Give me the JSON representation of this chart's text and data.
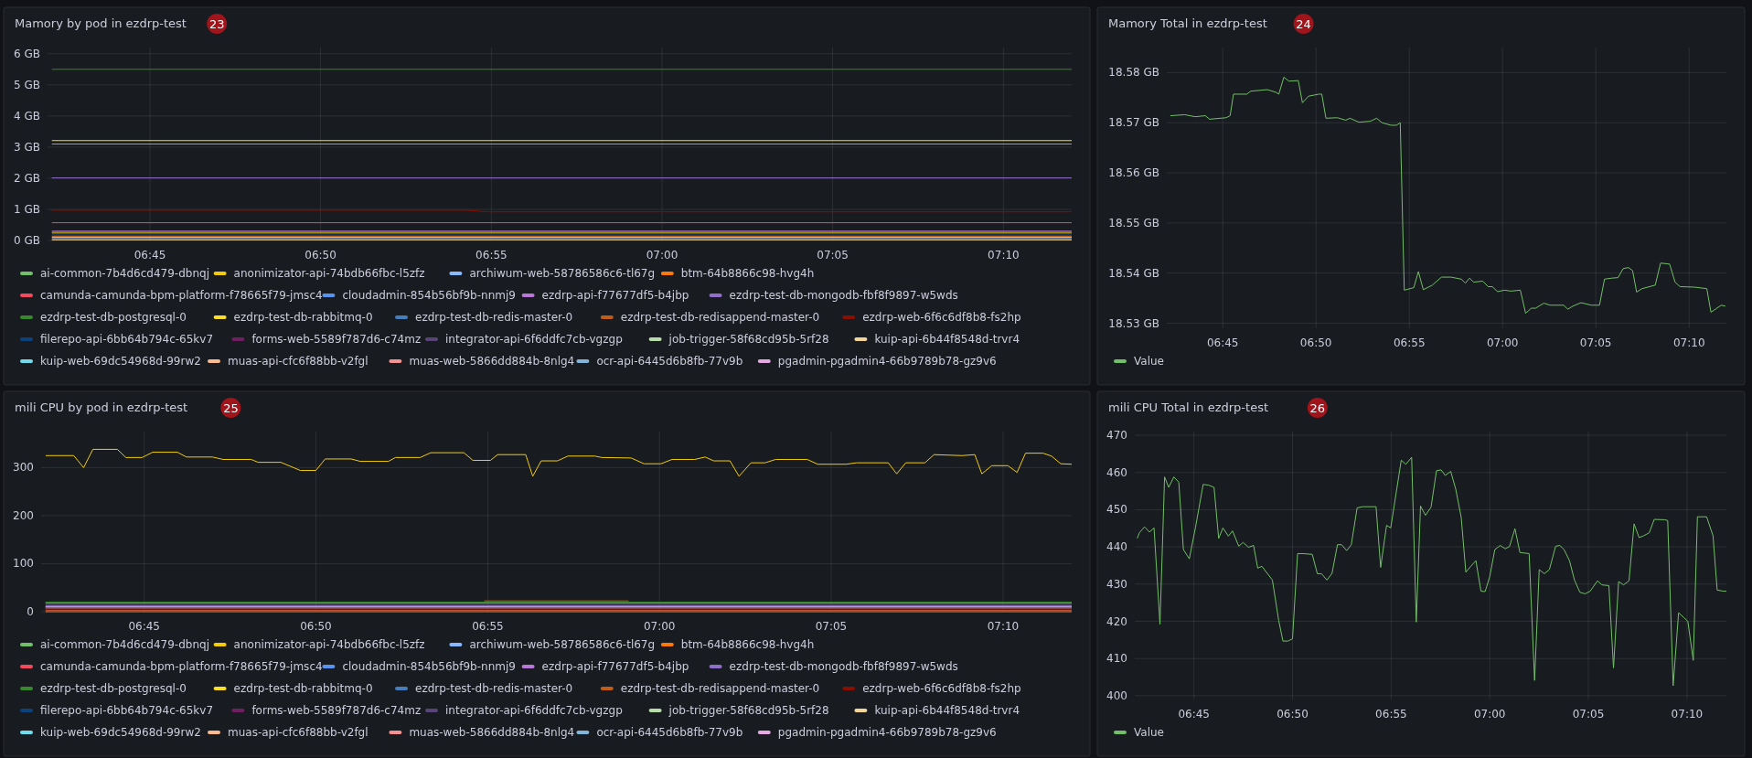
{
  "chart_data": [
    {
      "type": "line",
      "title": "Mamory by pod in ezdrp-test",
      "annotations": [
        "23"
      ],
      "grid": true,
      "legend": "bottom",
      "xlim": [
        6.7,
        7.2
      ],
      "xticks": [
        {
          "value": 6.75,
          "label": "06:45"
        },
        {
          "value": 6.8333,
          "label": "06:50"
        },
        {
          "value": 6.9167,
          "label": "06:55"
        },
        {
          "value": 7,
          "label": "07:00"
        },
        {
          "value": 7.0833,
          "label": "07:05"
        },
        {
          "value": 7.1667,
          "label": "07:10"
        }
      ],
      "ylim": [
        0,
        6.2
      ],
      "yticks": [
        {
          "value": 0,
          "label": "0 GB"
        },
        {
          "value": 1,
          "label": "1 GB"
        },
        {
          "value": 2,
          "label": "2 GB"
        },
        {
          "value": 3,
          "label": "3 GB"
        },
        {
          "value": 4,
          "label": "4 GB"
        },
        {
          "value": 5,
          "label": "5 GB"
        },
        {
          "value": 6,
          "label": "6 GB"
        }
      ],
      "series": [
        {
          "name": "ai-common-7b4d6cd479-dbnqj",
          "color": "#73bf69",
          "x": [
            6.7021,
            7.2
          ],
          "values": [
            3.1,
            3.1
          ]
        },
        {
          "name": "anonimizator-api-74bdb66fbc-l5zfz",
          "color": "#f2cc0c",
          "x": [
            6.7021,
            7.2
          ],
          "values": [
            0.26,
            0.26
          ]
        },
        {
          "name": "archiwum-web-58786586c6-tl67g",
          "color": "#8ab8ff",
          "x": [
            6.7021,
            7.2
          ],
          "values": [
            0.06,
            0.06
          ]
        },
        {
          "name": "btm-64b8866c98-hvg4h",
          "color": "#ff780a",
          "x": [
            6.7021,
            7.2
          ],
          "values": [
            0.14,
            0.14
          ]
        },
        {
          "name": "camunda-camunda-bpm-platform-f78665f79-jmsc4",
          "color": "#f2495c",
          "x": [
            6.7021,
            7.2
          ],
          "values": [
            0.57,
            0.57
          ]
        },
        {
          "name": "cloudadmin-854b56bf9b-nnmj9",
          "color": "#5794f2"
        },
        {
          "name": "ezdrp-api-f77677df5-b4jbp",
          "color": "#b877d9",
          "x": [
            6.7021,
            7.2
          ],
          "values": [
            0.3,
            0.3
          ]
        },
        {
          "name": "ezdrp-test-db-mongodb-fbf8f9897-w5wds",
          "color": "#8f6fc7",
          "x": [
            6.7021,
            7.2
          ],
          "values": [
            2.01,
            2.01
          ]
        },
        {
          "name": "ezdrp-test-db-postgresql-0",
          "color": "#37872d",
          "x": [
            6.7021,
            7.2
          ],
          "values": [
            5.5,
            5.5
          ]
        },
        {
          "name": "ezdrp-test-db-rabbitmq-0",
          "color": "#fade2a",
          "x": [
            6.7021,
            7.2
          ],
          "values": [
            3.21,
            3.21
          ]
        },
        {
          "name": "ezdrp-test-db-redis-master-0",
          "color": "#447ebc"
        },
        {
          "name": "ezdrp-test-db-redisappend-master-0",
          "color": "#c15c17"
        },
        {
          "name": "ezdrp-web-6f6c6df8b8-fs2hp",
          "color": "#890f02",
          "x": [
            6.7021,
            6.905,
            6.915,
            7.2
          ],
          "values": [
            0.97,
            0.97,
            0.92,
            0.92
          ]
        },
        {
          "name": "filerepo-api-6bb64b794c-65kv7",
          "color": "#0a437c",
          "x": [
            6.7021,
            7.2
          ],
          "values": [
            0.18,
            0.18
          ]
        },
        {
          "name": "forms-web-5589f787d6-c74mz",
          "color": "#6d1f62"
        },
        {
          "name": "integrator-api-6f6ddfc7cb-vgzgp",
          "color": "#584477",
          "x": [
            6.7021,
            7.2
          ],
          "values": [
            0.22,
            0.22
          ]
        },
        {
          "name": "job-trigger-58f68cd95b-5rf28",
          "color": "#b7dbab"
        },
        {
          "name": "kuip-api-6b44f8548d-trvr4",
          "color": "#f4d598",
          "x": [
            6.7021,
            7.2
          ],
          "values": [
            0.02,
            0.02
          ]
        },
        {
          "name": "kuip-web-69dc54968d-99rw2",
          "color": "#70dbed"
        },
        {
          "name": "muas-api-cfc6f88bb-v2fgl",
          "color": "#f9ba8f",
          "x": [
            6.7021,
            7.2
          ],
          "values": [
            0.1,
            0.1
          ]
        },
        {
          "name": "muas-web-5866dd884b-8nlg4",
          "color": "#f29191"
        },
        {
          "name": "ocr-api-6445d6b8fb-77v9b",
          "color": "#82b5d8"
        },
        {
          "name": "pgadmin-pgadmin4-66b9789b78-gz9v6",
          "color": "#e5a8e2"
        }
      ]
    },
    {
      "type": "line",
      "title": "Mamory Total in ezdrp-test",
      "annotations": [
        "24"
      ],
      "grid": true,
      "legend": "bottom",
      "xlim": [
        6.7,
        7.2
      ],
      "xticks": [
        {
          "value": 6.75,
          "label": "06:45"
        },
        {
          "value": 6.8333,
          "label": "06:50"
        },
        {
          "value": 6.9167,
          "label": "06:55"
        },
        {
          "value": 7,
          "label": "07:00"
        },
        {
          "value": 7.0833,
          "label": "07:05"
        },
        {
          "value": 7.1667,
          "label": "07:10"
        }
      ],
      "ylim": [
        18.529,
        18.585
      ],
      "yticks": [
        {
          "value": 18.53,
          "label": "18.53 GB"
        },
        {
          "value": 18.54,
          "label": "18.54 GB"
        },
        {
          "value": 18.55,
          "label": "18.55 GB"
        },
        {
          "value": 18.56,
          "label": "18.56 GB"
        },
        {
          "value": 18.57,
          "label": "18.57 GB"
        },
        {
          "value": 18.58,
          "label": "18.58 GB"
        }
      ],
      "series": [
        {
          "name": "Value",
          "color": "#73bf69",
          "x": [
            6.7032,
            6.7161,
            6.7253,
            6.7345,
            6.7382,
            6.7529,
            6.7566,
            6.7596,
            6.7714,
            6.7751,
            6.7898,
            6.7972,
            6.8001,
            6.8046,
            6.809,
            6.8175,
            6.8212,
            6.8267,
            6.8359,
            6.8385,
            6.8422,
            6.8525,
            6.8599,
            6.8636,
            6.8717,
            6.882,
            6.8875,
            6.8923,
            6.9004,
            6.9052,
            6.9086,
            6.9122,
            6.9207,
            6.9248,
            6.9292,
            6.9373,
            6.9454,
            6.9539,
            6.9631,
            6.9668,
            6.9705,
            6.9742,
            6.9823,
            6.9871,
            6.9908,
            6.9956,
            7.0018,
            7.0074,
            7.0159,
            7.0206,
            7.0258,
            7.0295,
            7.0369,
            7.0424,
            7.0546,
            7.0583,
            7.0627,
            7.0701,
            7.0793,
            7.0866,
            7.0911,
            7.0977,
            7.1032,
            7.1077,
            7.1125,
            7.1162,
            7.1198,
            7.1246,
            7.1364,
            7.1412,
            7.1493,
            7.1541,
            7.1586,
            7.1715,
            7.1825,
            7.1862,
            7.1954,
            7.1991
          ],
          "values": [
            18.5714,
            18.5716,
            18.5712,
            18.5714,
            18.5707,
            18.571,
            18.5714,
            18.5757,
            18.5757,
            18.5763,
            18.5766,
            18.5761,
            18.5757,
            18.5791,
            18.5783,
            18.5784,
            18.574,
            18.5753,
            18.5757,
            18.5757,
            18.5709,
            18.571,
            18.5705,
            18.5709,
            18.5701,
            18.5703,
            18.5709,
            18.57,
            18.5695,
            18.5695,
            18.57,
            18.5366,
            18.5371,
            18.5403,
            18.5367,
            18.5376,
            18.5392,
            18.5392,
            18.5388,
            18.538,
            18.539,
            18.5382,
            18.5384,
            18.5373,
            18.5373,
            18.5363,
            18.5366,
            18.5364,
            18.5366,
            18.532,
            18.533,
            18.533,
            18.534,
            18.5336,
            18.5336,
            18.5328,
            18.5334,
            18.5341,
            18.5336,
            18.5336,
            18.5388,
            18.539,
            18.5391,
            18.5409,
            18.5411,
            18.5405,
            18.5362,
            18.5369,
            18.5376,
            18.542,
            18.5418,
            18.5382,
            18.5373,
            18.5372,
            18.5369,
            18.5322,
            18.5336,
            18.5334
          ]
        }
      ]
    },
    {
      "type": "line",
      "title": "mili CPU by pod in ezdrp-test",
      "annotations": [
        "25"
      ],
      "grid": true,
      "legend": "bottom",
      "xlim": [
        6.7,
        7.2
      ],
      "xticks": [
        {
          "value": 6.75,
          "label": "06:45"
        },
        {
          "value": 6.8333,
          "label": "06:50"
        },
        {
          "value": 6.9167,
          "label": "06:55"
        },
        {
          "value": 7,
          "label": "07:00"
        },
        {
          "value": 7.0833,
          "label": "07:05"
        },
        {
          "value": 7.1667,
          "label": "07:10"
        }
      ],
      "ylim": [
        0,
        375
      ],
      "yticks": [
        0,
        100,
        200,
        300
      ],
      "series": [
        {
          "name": "ai-common-7b4d6cd479-dbnqj",
          "color": "#73bf69",
          "x": [
            6.7021,
            7.2
          ],
          "values": [
            17.5,
            17.5
          ]
        },
        {
          "name": "anonimizator-api-74bdb66fbc-l5zfz",
          "color": "#f2cc0c",
          "x": [
            6.7022,
            6.7158,
            6.7206,
            6.7251,
            6.737,
            6.7411,
            6.749,
            6.7541,
            6.7661,
            6.7705,
            6.7831,
            6.7883,
            6.8019,
            6.8053,
            6.8163,
            6.8258,
            6.8333,
            6.8378,
            6.8504,
            6.8548,
            6.8685,
            6.8719,
            6.8839,
            6.889,
            6.9051,
            6.9095,
            6.918,
            6.9214,
            6.9351,
            6.9385,
            6.9426,
            6.9505,
            6.9556,
            6.9686,
            6.972,
            6.9863,
            6.9925,
            7.0007,
            7.0061,
            7.0171,
            7.0222,
            7.0263,
            7.0342,
            7.0386,
            7.0444,
            7.0512,
            7.0564,
            7.0717,
            7.0768,
            7.0905,
            7.0956,
            7.111,
            7.1151,
            7.1195,
            7.1288,
            7.1332,
            7.1469,
            7.153,
            7.1564,
            7.1612,
            7.1691,
            7.1735,
            7.1776,
            7.1861,
            7.1902,
            7.1947,
            7.2
          ],
          "values": [
            325,
            325,
            300,
            338,
            338,
            321,
            321,
            332,
            332,
            322,
            322,
            317,
            317,
            311,
            311,
            294,
            294,
            318,
            318,
            313,
            313,
            321,
            321,
            331,
            331,
            315,
            315,
            327,
            327,
            282,
            314,
            314,
            324,
            324,
            321,
            320,
            308,
            308,
            317,
            317,
            322,
            314,
            314,
            282,
            310,
            310,
            317,
            317,
            307,
            307,
            310,
            310,
            287,
            310,
            310,
            327,
            325,
            327,
            287,
            304,
            304,
            290,
            330,
            330,
            324,
            308,
            307
          ]
        },
        {
          "name": "archiwum-web-58786586c6-tl67g",
          "color": "#8ab8ff"
        },
        {
          "name": "btm-64b8866c98-hvg4h",
          "color": "#ff780a",
          "x": [
            6.7021,
            7.2
          ],
          "values": [
            0,
            0
          ]
        },
        {
          "name": "camunda-camunda-bpm-platform-f78665f79-jmsc4",
          "color": "#f2495c",
          "x": [
            6.7021,
            7.2
          ],
          "values": [
            2.5,
            2.5
          ]
        },
        {
          "name": "cloudadmin-854b56bf9b-nnmj9",
          "color": "#5794f2"
        },
        {
          "name": "ezdrp-api-f77677df5-b4jbp",
          "color": "#b877d9",
          "x": [
            6.7021,
            7.2
          ],
          "values": [
            7.5,
            7.5
          ]
        },
        {
          "name": "ezdrp-test-db-mongodb-fbf8f9897-w5wds",
          "color": "#8f6fc7",
          "x": [
            6.7021,
            7.2
          ],
          "values": [
            12.5,
            12.5
          ]
        },
        {
          "name": "ezdrp-test-db-postgresql-0",
          "color": "#37872d",
          "x": [
            6.7021,
            7.2
          ],
          "values": [
            20,
            20
          ]
        },
        {
          "name": "ezdrp-test-db-rabbitmq-0",
          "color": "#fade2a"
        },
        {
          "name": "ezdrp-test-db-redis-master-0",
          "color": "#447ebc"
        },
        {
          "name": "ezdrp-test-db-redisappend-master-0",
          "color": "#c15c17",
          "x": [
            6.915,
            6.985
          ],
          "values": [
            22.5,
            22.5
          ]
        },
        {
          "name": "ezdrp-web-6f6c6df8b8-fs2hp",
          "color": "#890f02",
          "x": [
            6.7021,
            7.2
          ],
          "values": [
            5,
            5
          ]
        },
        {
          "name": "filerepo-api-6bb64b794c-65kv7",
          "color": "#0a437c"
        },
        {
          "name": "forms-web-5589f787d6-c74mz",
          "color": "#6d1f62"
        },
        {
          "name": "integrator-api-6f6ddfc7cb-vgzgp",
          "color": "#584477",
          "x": [
            6.7021,
            7.2
          ],
          "values": [
            15,
            15
          ]
        },
        {
          "name": "job-trigger-58f68cd95b-5rf28",
          "color": "#b7dbab"
        },
        {
          "name": "kuip-api-6b44f8548d-trvr4",
          "color": "#f4d598",
          "x": [
            6.7021,
            7.2
          ],
          "values": [
            10,
            10
          ]
        },
        {
          "name": "kuip-web-69dc54968d-99rw2",
          "color": "#70dbed"
        },
        {
          "name": "muas-api-cfc6f88bb-v2fgl",
          "color": "#f9ba8f"
        },
        {
          "name": "muas-web-5866dd884b-8nlg4",
          "color": "#f29191"
        },
        {
          "name": "ocr-api-6445d6b8fb-77v9b",
          "color": "#82b5d8"
        },
        {
          "name": "pgadmin-pgadmin4-66b9789b78-gz9v6",
          "color": "#e5a8e2"
        }
      ]
    },
    {
      "type": "line",
      "title": "mili CPU Total in ezdrp-test",
      "annotations": [
        "26"
      ],
      "grid": true,
      "legend": "bottom",
      "xlim": [
        6.7,
        7.2
      ],
      "xticks": [
        {
          "value": 6.75,
          "label": "06:45"
        },
        {
          "value": 6.8333,
          "label": "06:50"
        },
        {
          "value": 6.9167,
          "label": "06:55"
        },
        {
          "value": 7,
          "label": "07:00"
        },
        {
          "value": 7.0833,
          "label": "07:05"
        },
        {
          "value": 7.1667,
          "label": "07:10"
        }
      ],
      "ylim": [
        399,
        471
      ],
      "yticks": [
        400,
        410,
        420,
        430,
        440,
        450,
        460,
        470
      ],
      "series": [
        {
          "name": "Value",
          "color": "#73bf69",
          "x": [
            6.7021,
            6.7039,
            6.7082,
            6.7124,
            6.7163,
            6.7213,
            6.7252,
            6.7287,
            6.733,
            6.7372,
            6.7411,
            6.7461,
            6.7514,
            6.7578,
            6.7624,
            6.767,
            6.7709,
            6.7745,
            6.7791,
            6.7826,
            6.7879,
            6.7915,
            6.7961,
            6.8004,
            6.8039,
            6.8074,
            6.8163,
            6.8216,
            6.8252,
            6.8294,
            6.8333,
            6.8376,
            6.8422,
            6.85,
            6.8543,
            6.8578,
            6.8624,
            6.8667,
            6.8713,
            6.8748,
            6.8791,
            6.883,
            6.8879,
            6.8926,
            6.9039,
            6.9078,
            6.9128,
            6.9163,
            6.9252,
            6.9291,
            6.934,
            6.9379,
            6.9415,
            6.9457,
            6.9504,
            6.955,
            6.9589,
            6.9624,
            6.967,
            6.9713,
            6.9759,
            6.9798,
            6.984,
            6.9883,
            6.9926,
            6.9961,
            7,
            7.0043,
            7.0089,
            7.0131,
            7.0167,
            7.0213,
            7.0255,
            7.0333,
            7.0379,
            7.0418,
            7.0461,
            7.0504,
            7.0557,
            7.0592,
            7.0628,
            7.0674,
            7.0716,
            7.0762,
            7.0805,
            7.0848,
            7.0911,
            7.0947,
            7.1007,
            7.1046,
            7.1089,
            7.1131,
            7.1177,
            7.122,
            7.1262,
            7.1301,
            7.1348,
            7.139,
            7.1479,
            7.1504,
            7.155,
            7.1596,
            7.1638,
            7.1674,
            7.172,
            7.1755,
            7.1833,
            7.1887,
            7.1922,
            7.1975,
            7.2
          ],
          "values": [
            442.3,
            443.8,
            445.4,
            444,
            445.1,
            419.2,
            458.8,
            456,
            458.8,
            457.4,
            439.3,
            436.8,
            445.4,
            456.8,
            456.6,
            456,
            442.3,
            445.1,
            442.9,
            444.3,
            440.2,
            441.2,
            439.9,
            440.4,
            434.3,
            434.8,
            431.1,
            420.3,
            414.7,
            414.7,
            415.3,
            438.2,
            438.2,
            438,
            432.8,
            432.8,
            431.1,
            432.9,
            440.6,
            440.6,
            439,
            440.6,
            450.5,
            450.8,
            450.8,
            434.5,
            445.8,
            445.1,
            463.3,
            462.2,
            464.1,
            419.8,
            451,
            448.5,
            450.7,
            460.5,
            460.7,
            459.2,
            460.3,
            455.5,
            447.9,
            433.2,
            434.8,
            436.3,
            428.1,
            428,
            432,
            439.3,
            440.4,
            439.5,
            440.1,
            444.9,
            438.5,
            438.2,
            404.1,
            433.9,
            432.8,
            433.9,
            440.2,
            440.4,
            439.3,
            436.3,
            431.1,
            427.8,
            427.4,
            428.1,
            430.9,
            429.8,
            429.6,
            407.5,
            430.7,
            429.8,
            430.9,
            446.2,
            442.5,
            443,
            443.8,
            447.4,
            447.3,
            447.1,
            402.7,
            422.3,
            421.1,
            420,
            409.5,
            448.1,
            448.1,
            443,
            428.4,
            428.1,
            428.1
          ]
        }
      ]
    }
  ]
}
